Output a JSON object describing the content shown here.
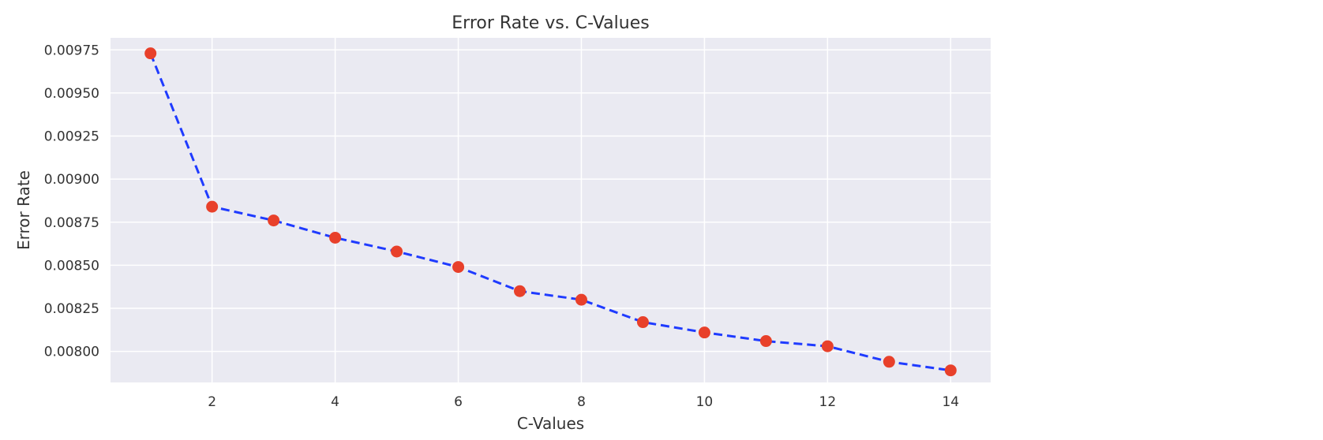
{
  "chart_data": {
    "type": "line",
    "title": "Error Rate vs. C-Values",
    "xlabel": "C-Values",
    "ylabel": "Error Rate",
    "x": [
      1,
      2,
      3,
      4,
      5,
      6,
      7,
      8,
      9,
      10,
      11,
      12,
      13,
      14
    ],
    "series": [
      {
        "values": [
          0.00973,
          0.00884,
          0.00876,
          0.00866,
          0.00858,
          0.00849,
          0.00835,
          0.0083,
          0.00817,
          0.00811,
          0.00806,
          0.00803,
          0.00794,
          0.00789
        ]
      }
    ],
    "xlim": [
      0.35,
      14.65
    ],
    "ylim": [
      0.00782,
      0.00982
    ],
    "xticks": [
      2,
      4,
      6,
      8,
      10,
      12,
      14
    ],
    "xtick_labels": [
      "2",
      "4",
      "6",
      "8",
      "10",
      "12",
      "14"
    ],
    "yticks": [
      0.008,
      0.00825,
      0.0085,
      0.00875,
      0.009,
      0.00925,
      0.0095,
      0.00975
    ],
    "ytick_labels": [
      "0.00800",
      "0.00825",
      "0.00850",
      "0.00875",
      "0.00900",
      "0.00925",
      "0.00950",
      "0.00975"
    ],
    "grid": true,
    "legend": false,
    "colors": {
      "plot_background": "#eaeaf2",
      "grid": "#ffffff",
      "line": "#1f3bff",
      "marker": "#e8402a",
      "text": "#333333"
    },
    "line_style": "dashed",
    "marker": "circle"
  }
}
